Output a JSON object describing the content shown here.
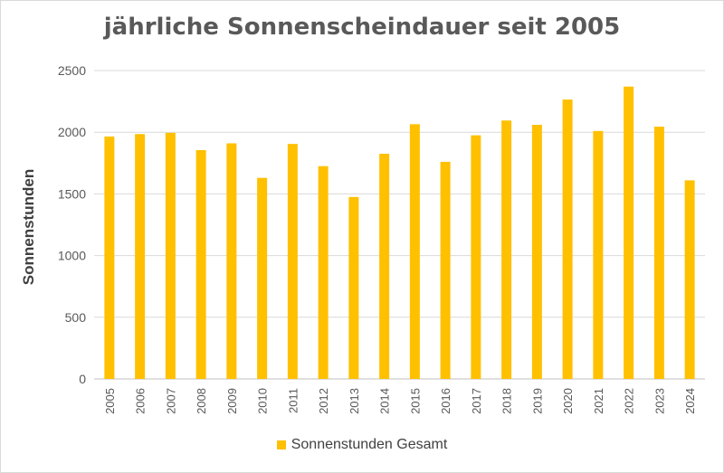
{
  "chart_data": {
    "type": "bar",
    "title": "jährliche Sonnenscheindauer seit 2005",
    "ylabel": "Sonnenstunden",
    "xlabel": "",
    "ylim": [
      0,
      2500
    ],
    "yticks": [
      0,
      500,
      1000,
      1500,
      2000,
      2500
    ],
    "grid": true,
    "legend_position": "bottom",
    "categories": [
      "2005",
      "2006",
      "2007",
      "2008",
      "2009",
      "2010",
      "2011",
      "2012",
      "2013",
      "2014",
      "2015",
      "2016",
      "2017",
      "2018",
      "2019",
      "2020",
      "2021",
      "2022",
      "2023",
      "2024"
    ],
    "series": [
      {
        "name": "Sonnenstunden Gesamt",
        "color": "#FFC000",
        "values": [
          1965,
          1985,
          1995,
          1855,
          1910,
          1630,
          1905,
          1725,
          1475,
          1825,
          2065,
          1760,
          1975,
          2095,
          2060,
          2265,
          2010,
          2370,
          2045,
          1610
        ]
      }
    ]
  }
}
